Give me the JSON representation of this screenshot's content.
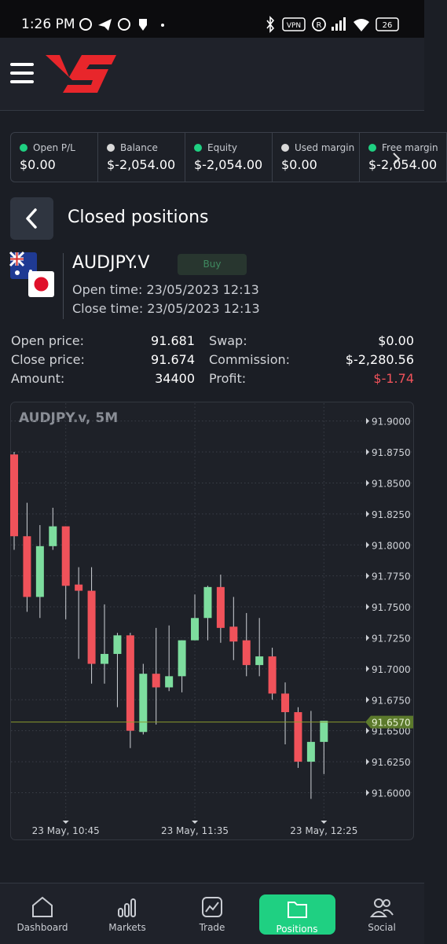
{
  "status_bar": {
    "time": "1:26 PM",
    "battery": "26",
    "vpn": "VPN"
  },
  "account": [
    {
      "label": "Open P/L",
      "value": "$0.00",
      "dot": "#1fd082"
    },
    {
      "label": "Balance",
      "value": "$-2,054.00",
      "dot": "#d9d9d9"
    },
    {
      "label": "Equity",
      "value": "$-2,054.00",
      "dot": "#1fd082"
    },
    {
      "label": "Used margin",
      "value": "$0.00",
      "dot": "#d9d9d9"
    },
    {
      "label": "Free margin",
      "value": "$-2,054.00",
      "dot": "#1fd082"
    }
  ],
  "page_title": "Closed positions",
  "position": {
    "symbol": "AUDJPY.V",
    "side": "Buy",
    "open_time": "Open time: 23/05/2023 12:13",
    "close_time": "Close time: 23/05/2023 12:13",
    "details_left": [
      {
        "label": "Open price:",
        "value": "91.681"
      },
      {
        "label": "Close price:",
        "value": "91.674"
      },
      {
        "label": "Amount:",
        "value": "34400"
      }
    ],
    "details_right": [
      {
        "label": "Swap:",
        "value": "$0.00"
      },
      {
        "label": "Commission:",
        "value": "$-2,280.56"
      },
      {
        "label": "Profit:",
        "value": "$-1.74"
      }
    ]
  },
  "chart_data": {
    "type": "candlestick",
    "title": "AUDJPY.v, 5M",
    "categories": [
      null,
      null,
      null,
      null,
      "23 May, 10:45",
      null,
      null,
      null,
      null,
      null,
      null,
      null,
      null,
      null,
      "23 May, 11:35",
      null,
      null,
      null,
      null,
      null,
      null,
      null,
      null,
      null,
      "23 May, 12:25"
    ],
    "open": [
      91.873,
      91.807,
      91.758,
      91.799,
      91.815,
      91.768,
      91.763,
      91.704,
      91.712,
      91.727,
      91.649,
      91.696,
      91.685,
      91.694,
      91.723,
      91.741,
      91.766,
      91.734,
      91.723,
      91.703,
      91.71,
      91.68,
      91.665,
      91.625,
      91.641
    ],
    "high": [
      91.875,
      91.834,
      91.816,
      91.83,
      91.815,
      91.782,
      91.782,
      91.752,
      91.729,
      91.729,
      91.704,
      91.733,
      91.735,
      91.723,
      91.76,
      91.767,
      91.776,
      91.758,
      91.745,
      91.741,
      91.717,
      91.689,
      91.669,
      91.666,
      91.658
    ],
    "low": [
      91.796,
      91.746,
      91.741,
      91.796,
      91.74,
      91.708,
      91.688,
      91.688,
      91.669,
      91.636,
      91.647,
      91.655,
      91.682,
      91.681,
      91.723,
      91.723,
      91.721,
      91.707,
      91.694,
      91.694,
      91.675,
      91.639,
      91.62,
      91.595,
      91.615
    ],
    "close": [
      91.807,
      91.758,
      91.799,
      91.815,
      91.767,
      91.763,
      91.704,
      91.712,
      91.727,
      91.65,
      91.696,
      91.685,
      91.694,
      91.723,
      91.741,
      91.766,
      91.733,
      91.722,
      91.703,
      91.71,
      91.68,
      91.665,
      91.625,
      91.641,
      91.658
    ],
    "up_color": "#7ddd9e",
    "down_color": "#f0525a",
    "ylim": [
      91.58,
      91.915
    ],
    "yticks": [
      {
        "value": 91.9,
        "label": "91.9000"
      },
      {
        "value": 91.875,
        "label": "91.8750"
      },
      {
        "value": 91.85,
        "label": "91.8500"
      },
      {
        "value": 91.825,
        "label": "91.8250"
      },
      {
        "value": 91.8,
        "label": "91.8000"
      },
      {
        "value": 91.775,
        "label": "91.7750"
      },
      {
        "value": 91.75,
        "label": "91.7500"
      },
      {
        "value": 91.725,
        "label": "91.7250"
      },
      {
        "value": 91.7,
        "label": "91.7000"
      },
      {
        "value": 91.675,
        "label": "91.6750"
      },
      {
        "value": 91.65,
        "label": "91.6500"
      },
      {
        "value": 91.625,
        "label": "91.6250"
      },
      {
        "value": 91.6,
        "label": "91.6000"
      }
    ],
    "last_price": {
      "value": 91.657,
      "label": "91.6570"
    },
    "grid": true
  },
  "nav": [
    {
      "label": "Dashboard",
      "active": false
    },
    {
      "label": "Markets",
      "active": false
    },
    {
      "label": "Trade",
      "active": false
    },
    {
      "label": "Positions",
      "active": true
    },
    {
      "label": "Social",
      "active": false
    }
  ]
}
